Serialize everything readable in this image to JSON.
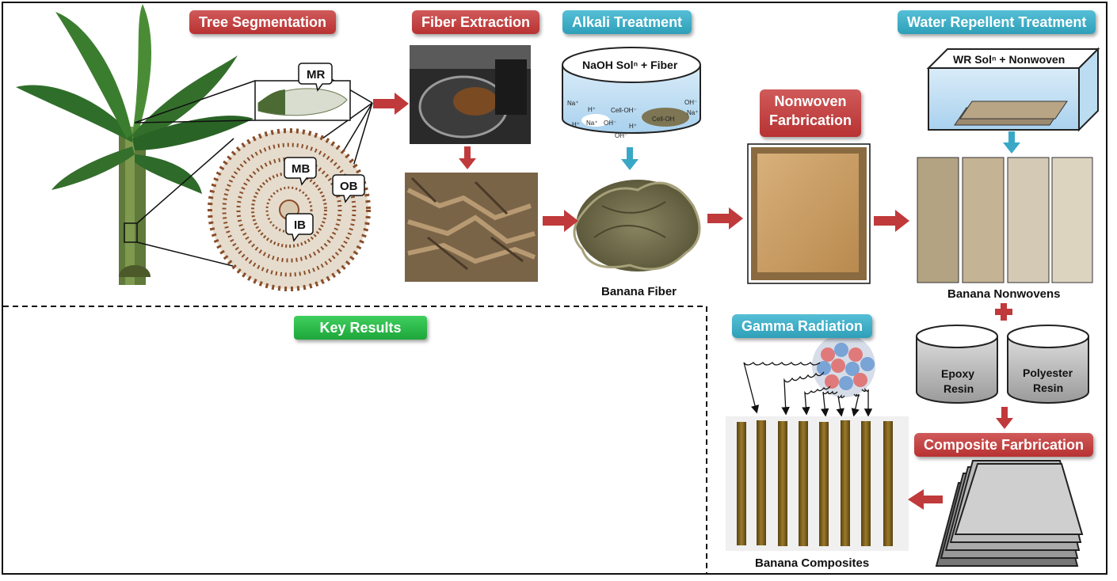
{
  "badges": {
    "tree_segmentation": "Tree Segmentation",
    "fiber_extraction": "Fiber Extraction",
    "alkali_treatment": "Alkali Treatment",
    "water_repellent": "Water Repellent Treatment",
    "nonwoven_line1": "Nonwoven",
    "nonwoven_line2": "Farbrication",
    "gamma_radiation": "Gamma Radiation",
    "composite_fabrication": "Composite Farbrication",
    "key_results": "Key Results"
  },
  "callouts": {
    "mr": "MR",
    "mb": "MB",
    "ob": "OB",
    "ib": "IB"
  },
  "tanks": {
    "naoh_label": "NaOH Solⁿ + Fiber",
    "wr_label": "WR Solⁿ + Nonwoven",
    "ions": {
      "na": "Na⁺",
      "h": "H⁺",
      "oh": "OH⁻",
      "cell_oh": "Cell-OH⁻",
      "cell_oh2": "Cell-OH"
    }
  },
  "resins": {
    "epoxy_l1": "Epoxy",
    "epoxy_l2": "Resin",
    "polyester_l1": "Polyester",
    "polyester_l2": "Resin"
  },
  "captions": {
    "banana_fiber": "Banana Fiber",
    "banana_nonwovens": "Banana Nonwovens",
    "banana_composites": "Banana Composites"
  },
  "colors": {
    "red_badge": "#c0393b",
    "blue_badge": "#3aa9c4",
    "green_badge": "#22b03f",
    "arrow_red": "#c0393b",
    "arrow_blue": "#39a8c6"
  }
}
